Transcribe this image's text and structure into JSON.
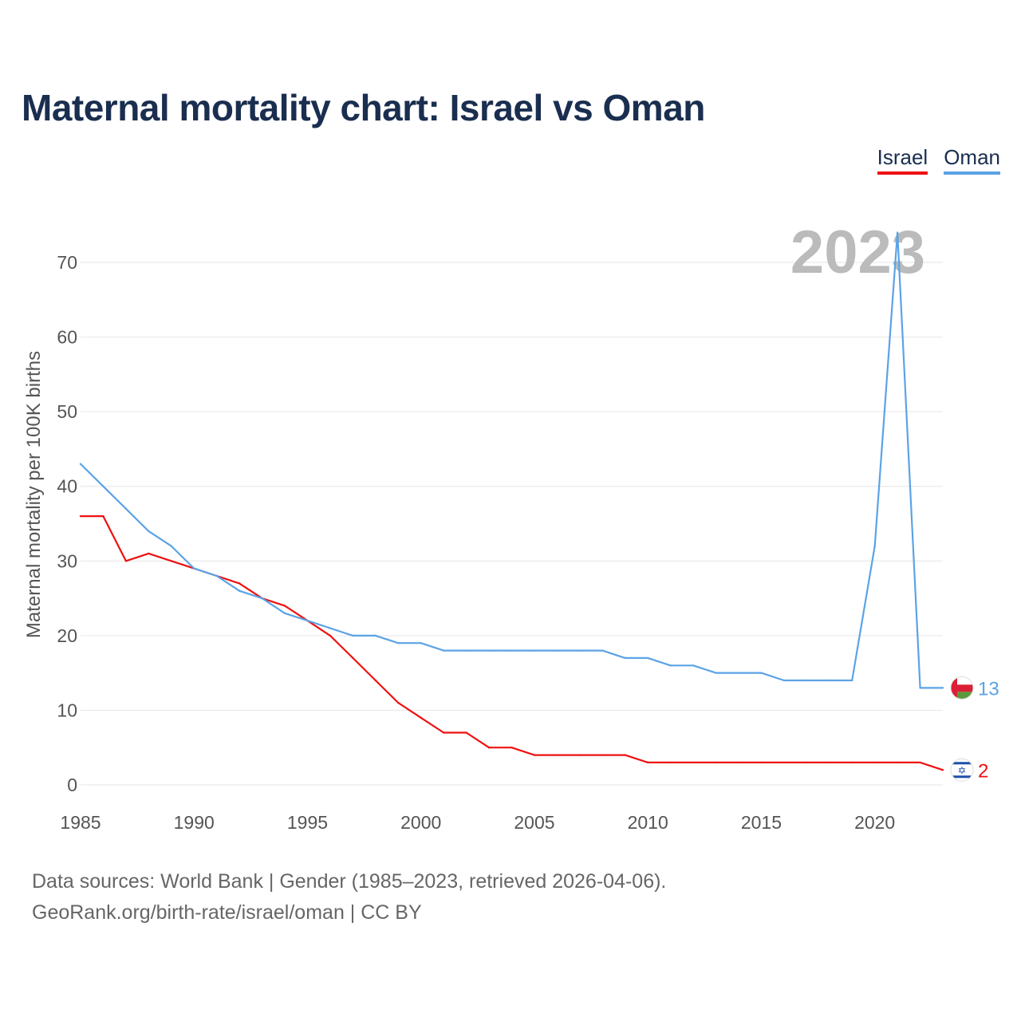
{
  "title": "Maternal mortality chart: Israel vs Oman",
  "legend": [
    {
      "label": "Israel",
      "color": "#ee1111"
    },
    {
      "label": "Oman",
      "color": "#5ba3e6"
    }
  ],
  "year_watermark": "2023",
  "source": {
    "line1": "Data sources: World Bank | Gender (1985–2023, retrieved 2026-04-06).",
    "line2": "GeoRank.org/birth-rate/israel/oman | CC BY"
  },
  "chart_data": {
    "type": "line",
    "title": "Maternal mortality chart: Israel vs Oman",
    "xlabel": "",
    "ylabel": "Maternal mortality per 100K births",
    "xlim": [
      1985,
      2023
    ],
    "ylim": [
      0,
      74
    ],
    "x_ticks": [
      1985,
      1990,
      1995,
      2000,
      2005,
      2010,
      2015,
      2020
    ],
    "y_ticks": [
      0,
      10,
      20,
      30,
      40,
      50,
      60,
      70
    ],
    "grid": true,
    "legend_position": "top-right",
    "x": [
      1985,
      1986,
      1987,
      1988,
      1989,
      1990,
      1991,
      1992,
      1993,
      1994,
      1995,
      1996,
      1997,
      1998,
      1999,
      2000,
      2001,
      2002,
      2003,
      2004,
      2005,
      2006,
      2007,
      2008,
      2009,
      2010,
      2011,
      2012,
      2013,
      2014,
      2015,
      2016,
      2017,
      2018,
      2019,
      2020,
      2021,
      2022,
      2023
    ],
    "series": [
      {
        "name": "Israel",
        "color": "#ee1111",
        "values": [
          36,
          36,
          30,
          31,
          30,
          29,
          28,
          27,
          25,
          24,
          22,
          20,
          17,
          14,
          11,
          9,
          7,
          7,
          5,
          5,
          4,
          4,
          4,
          4,
          4,
          3,
          3,
          3,
          3,
          3,
          3,
          3,
          3,
          3,
          3,
          3,
          3,
          3,
          2
        ],
        "end_label": "2",
        "flag_icon": "israel-flag-icon"
      },
      {
        "name": "Oman",
        "color": "#5ba3e6",
        "values": [
          43,
          40,
          37,
          34,
          32,
          29,
          28,
          26,
          25,
          23,
          22,
          21,
          20,
          20,
          19,
          19,
          18,
          18,
          18,
          18,
          18,
          18,
          18,
          18,
          17,
          17,
          16,
          16,
          15,
          15,
          15,
          14,
          14,
          14,
          14,
          32,
          74,
          13,
          13
        ],
        "end_label": "13",
        "flag_icon": "oman-flag-icon"
      }
    ]
  }
}
